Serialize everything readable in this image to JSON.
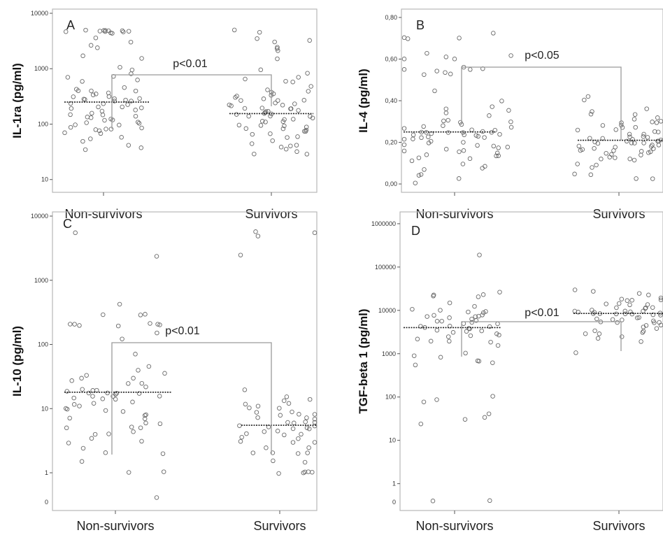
{
  "chart_data": [
    {
      "type": "scatter",
      "panel": "A",
      "ylabel": "IL-1ra (pg/ml)",
      "yscale": "log",
      "ylim": [
        7,
        10000
      ],
      "yticks": [
        10,
        100,
        1000,
        10000
      ],
      "ytick_labels": [
        "10",
        "100",
        "1000",
        "10000"
      ],
      "categories": [
        "Non-survivors",
        "Survivors"
      ],
      "annotation": "p<0.01",
      "medians": [
        250,
        155
      ],
      "series": [
        {
          "category": "Non-survivors",
          "values": [
            4800,
            4800,
            4800,
            4800,
            4800,
            4800,
            4800,
            4800,
            4800,
            4800,
            4500,
            4200,
            3600,
            3100,
            2700,
            2300,
            1700,
            1600,
            1100,
            950,
            800,
            700,
            700,
            650,
            580,
            450,
            430,
            400,
            400,
            390,
            380,
            350,
            340,
            320,
            300,
            300,
            290,
            280,
            280,
            270,
            260,
            250,
            240,
            230,
            220,
            210,
            200,
            200,
            190,
            180,
            170,
            160,
            150,
            150,
            140,
            130,
            130,
            120,
            120,
            115,
            110,
            110,
            105,
            100,
            95,
            90,
            85,
            80,
            80,
            78,
            75,
            70,
            68,
            60,
            55,
            50,
            40,
            38,
            36
          ]
        },
        {
          "category": "Survivors",
          "values": [
            4800,
            4500,
            3400,
            3300,
            3100,
            2500,
            2300,
            2100,
            1500,
            950,
            800,
            700,
            650,
            600,
            580,
            500,
            420,
            400,
            380,
            350,
            330,
            310,
            300,
            290,
            280,
            270,
            260,
            250,
            240,
            230,
            220,
            210,
            200,
            195,
            190,
            185,
            180,
            175,
            170,
            165,
            160,
            155,
            150,
            145,
            140,
            135,
            130,
            125,
            120,
            115,
            110,
            105,
            100,
            97,
            93,
            90,
            86,
            82,
            80,
            76,
            72,
            68,
            65,
            60,
            55,
            50,
            46,
            42,
            40,
            38,
            35,
            33,
            30,
            30
          ]
        }
      ]
    },
    {
      "type": "scatter",
      "panel": "B",
      "ylabel": "IL-4 (pg/ml)",
      "yscale": "linear",
      "ylim": [
        -0.02,
        0.82
      ],
      "yticks": [
        0,
        0.2,
        0.4,
        0.6,
        0.8
      ],
      "ytick_labels": [
        "0,00",
        "0,20",
        "0,40",
        "0,60",
        "0,80"
      ],
      "categories": [
        "Non-survivors",
        "Survivors"
      ],
      "annotation": "p<0.05",
      "medians": [
        0.25,
        0.21
      ],
      "series": [
        {
          "category": "Non-survivors",
          "values": [
            0.72,
            0.7,
            0.7,
            0.7,
            0.63,
            0.62,
            0.61,
            0.6,
            0.6,
            0.56,
            0.55,
            0.55,
            0.55,
            0.54,
            0.54,
            0.53,
            0.53,
            0.45,
            0.4,
            0.37,
            0.36,
            0.35,
            0.34,
            0.33,
            0.31,
            0.3,
            0.3,
            0.3,
            0.29,
            0.28,
            0.28,
            0.27,
            0.27,
            0.26,
            0.26,
            0.25,
            0.25,
            0.25,
            0.25,
            0.25,
            0.25,
            0.24,
            0.24,
            0.24,
            0.24,
            0.23,
            0.23,
            0.23,
            0.22,
            0.22,
            0.22,
            0.21,
            0.21,
            0.2,
            0.2,
            0.19,
            0.19,
            0.18,
            0.18,
            0.17,
            0.17,
            0.16,
            0.16,
            0.15,
            0.15,
            0.14,
            0.14,
            0.13,
            0.13,
            0.12,
            0.11,
            0.1,
            0.09,
            0.08,
            0.07,
            0.05,
            0.04,
            0.03,
            0.0
          ]
        },
        {
          "category": "Survivors",
          "values": [
            0.42,
            0.4,
            0.36,
            0.35,
            0.34,
            0.33,
            0.32,
            0.31,
            0.3,
            0.3,
            0.29,
            0.29,
            0.28,
            0.28,
            0.27,
            0.27,
            0.26,
            0.26,
            0.25,
            0.25,
            0.24,
            0.24,
            0.23,
            0.23,
            0.22,
            0.22,
            0.22,
            0.21,
            0.21,
            0.21,
            0.21,
            0.21,
            0.2,
            0.2,
            0.2,
            0.2,
            0.19,
            0.19,
            0.19,
            0.18,
            0.18,
            0.18,
            0.17,
            0.17,
            0.17,
            0.16,
            0.16,
            0.16,
            0.15,
            0.15,
            0.15,
            0.14,
            0.14,
            0.13,
            0.13,
            0.12,
            0.12,
            0.11,
            0.1,
            0.09,
            0.08,
            0.05,
            0.04,
            0.03,
            0.03
          ]
        }
      ]
    },
    {
      "type": "scatter",
      "panel": "C",
      "ylabel": "IL-10 (pg/ml)",
      "yscale": "log",
      "ylim": [
        0.3,
        10000
      ],
      "yticks": [
        1,
        10,
        100,
        1000,
        10000
      ],
      "ytick_labels": [
        "1",
        "10",
        "100",
        "1000",
        "10000"
      ],
      "extra_tick_label": "0",
      "categories": [
        "Non-survivors",
        "Survivors"
      ],
      "annotation": "p<0.01",
      "medians": [
        18,
        5.5
      ],
      "series": [
        {
          "category": "Non-survivors",
          "values": [
            5500,
            2300,
            420,
            300,
            300,
            280,
            210,
            210,
            200,
            200,
            200,
            200,
            190,
            150,
            120,
            70,
            45,
            40,
            35,
            33,
            30,
            30,
            28,
            25,
            24,
            22,
            20,
            20,
            19,
            18,
            18,
            18,
            18,
            17,
            17,
            16,
            16,
            15,
            15,
            14,
            14,
            13,
            12,
            12,
            11,
            10,
            10,
            9,
            9,
            8,
            8,
            7,
            7,
            6,
            6,
            5,
            5,
            5,
            4.5,
            4,
            4,
            3.5,
            3,
            3,
            2.5,
            2,
            2,
            1.5,
            1,
            1,
            0.4
          ]
        },
        {
          "category": "Survivors",
          "values": [
            5700,
            5500,
            5000,
            2500,
            20,
            15,
            14,
            13,
            12,
            12,
            11,
            10,
            10,
            9,
            9,
            8,
            8,
            8,
            7,
            7,
            7,
            6,
            6,
            6,
            6,
            5.5,
            5.5,
            5,
            5,
            5,
            5,
            4.5,
            4.5,
            4,
            4,
            4,
            3.5,
            3.5,
            3,
            3,
            3,
            2.5,
            2.5,
            2,
            2,
            2,
            2,
            1.5,
            1.5,
            1,
            1,
            1,
            1,
            1
          ]
        }
      ]
    },
    {
      "type": "scatter",
      "panel": "D",
      "ylabel": "TGF-beta 1 (pg/ml)",
      "yscale": "log",
      "ylim": [
        0.3,
        1500000
      ],
      "yticks": [
        1,
        10,
        100,
        1000,
        10000,
        100000,
        1000000
      ],
      "ytick_labels": [
        "1",
        "10",
        "100",
        "1000",
        "10000",
        "100000",
        "1000000"
      ],
      "extra_tick_label": "0",
      "categories": [
        "Non-survivors",
        "Survivors"
      ],
      "annotation": "p<0.01",
      "medians": [
        4000,
        8500
      ],
      "series": [
        {
          "category": "Non-survivors",
          "values": [
            200000,
            25000,
            24000,
            23000,
            22000,
            20000,
            15000,
            12000,
            11000,
            10000,
            9500,
            9000,
            8500,
            8000,
            8000,
            7500,
            7000,
            7000,
            6500,
            6000,
            6000,
            5500,
            5500,
            5000,
            5000,
            5000,
            4500,
            4500,
            4000,
            4000,
            4000,
            3800,
            3500,
            3500,
            3200,
            3000,
            3000,
            2800,
            2500,
            2500,
            2200,
            2000,
            2000,
            1800,
            1500,
            1000,
            900,
            800,
            700,
            650,
            600,
            550,
            100,
            90,
            80,
            40,
            35,
            30,
            25,
            0.4,
            0.4
          ]
        },
        {
          "category": "Survivors",
          "values": [
            30000,
            28000,
            25000,
            22000,
            20000,
            19000,
            18000,
            17000,
            16000,
            15000,
            14000,
            13000,
            13000,
            12000,
            12000,
            11000,
            11000,
            10000,
            10000,
            10000,
            9500,
            9500,
            9000,
            9000,
            8500,
            8500,
            8500,
            8000,
            8000,
            8000,
            7500,
            7500,
            7000,
            7000,
            6500,
            6500,
            6000,
            6000,
            5500,
            5500,
            5000,
            5000,
            4500,
            4500,
            4000,
            4000,
            3500,
            3500,
            3000,
            3000,
            2800,
            2500,
            2200,
            2000,
            1000
          ]
        }
      ]
    }
  ]
}
